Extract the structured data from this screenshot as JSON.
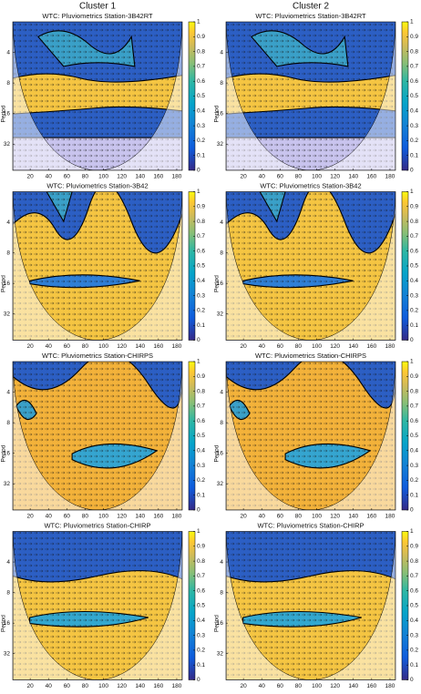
{
  "column_titles": [
    "Cluster 1",
    "Cluster 2"
  ],
  "chart_data": [
    {
      "type": "heatmap",
      "title": "WTC: Pluviometrics Station-3B42RT",
      "ylabel": "Period",
      "xlim": [
        1,
        186
      ],
      "xticks": [
        20,
        40,
        60,
        80,
        100,
        120,
        140,
        160,
        180
      ],
      "ylim": [
        2,
        58
      ],
      "yticks": [
        4,
        8,
        16,
        32
      ],
      "y_scale": "log2",
      "colorbar_lim": [
        0,
        1
      ],
      "colorbar_ticks": [
        0,
        0.1,
        0.2,
        0.3,
        0.4,
        0.5,
        0.6,
        0.7,
        0.8,
        0.9,
        1
      ]
    },
    {
      "type": "heatmap",
      "title": "WTC: Pluviometrics Station-3B42RT",
      "ylabel": "Period",
      "xlim": [
        1,
        186
      ],
      "xticks": [
        20,
        40,
        60,
        80,
        100,
        120,
        140,
        160,
        180
      ],
      "ylim": [
        2,
        58
      ],
      "yticks": [
        4,
        8,
        16,
        32
      ],
      "y_scale": "log2",
      "colorbar_lim": [
        0,
        1
      ],
      "colorbar_ticks": [
        0,
        0.1,
        0.2,
        0.3,
        0.4,
        0.5,
        0.6,
        0.7,
        0.8,
        0.9,
        1
      ]
    },
    {
      "type": "heatmap",
      "title": "WTC: Pluviometrics Station-3B42",
      "ylabel": "Period",
      "xlim": [
        1,
        186
      ],
      "xticks": [
        20,
        40,
        60,
        80,
        100,
        120,
        140,
        160,
        180
      ],
      "ylim": [
        2,
        58
      ],
      "yticks": [
        4,
        8,
        16,
        32
      ],
      "y_scale": "log2",
      "colorbar_lim": [
        0,
        1
      ],
      "colorbar_ticks": [
        0,
        0.1,
        0.2,
        0.3,
        0.4,
        0.5,
        0.6,
        0.7,
        0.8,
        0.9,
        1
      ]
    },
    {
      "type": "heatmap",
      "title": "WTC: Pluviometrics Station-3B42",
      "ylabel": "Period",
      "xlim": [
        1,
        186
      ],
      "xticks": [
        20,
        40,
        60,
        80,
        100,
        120,
        140,
        160,
        180
      ],
      "ylim": [
        2,
        58
      ],
      "yticks": [
        4,
        8,
        16,
        32
      ],
      "y_scale": "log2",
      "colorbar_lim": [
        0,
        1
      ],
      "colorbar_ticks": [
        0,
        0.1,
        0.2,
        0.3,
        0.4,
        0.5,
        0.6,
        0.7,
        0.8,
        0.9,
        1
      ]
    },
    {
      "type": "heatmap",
      "title": "WTC: Pluviometrics Station-CHIRPS",
      "ylabel": "Period",
      "xlim": [
        1,
        186
      ],
      "xticks": [
        20,
        40,
        60,
        80,
        100,
        120,
        140,
        160,
        180
      ],
      "ylim": [
        2,
        58
      ],
      "yticks": [
        4,
        8,
        16,
        32
      ],
      "y_scale": "log2",
      "colorbar_lim": [
        0,
        1
      ],
      "colorbar_ticks": [
        0,
        0.1,
        0.2,
        0.3,
        0.4,
        0.5,
        0.6,
        0.7,
        0.8,
        0.9,
        1
      ]
    },
    {
      "type": "heatmap",
      "title": "WTC: Pluviometrics Station-CHIRPS",
      "ylabel": "Period",
      "xlim": [
        1,
        186
      ],
      "xticks": [
        20,
        40,
        60,
        80,
        100,
        120,
        140,
        160,
        180
      ],
      "ylim": [
        2,
        58
      ],
      "yticks": [
        4,
        8,
        16,
        32
      ],
      "y_scale": "log2",
      "colorbar_lim": [
        0,
        1
      ],
      "colorbar_ticks": [
        0,
        0.1,
        0.2,
        0.3,
        0.4,
        0.5,
        0.6,
        0.7,
        0.8,
        0.9,
        1
      ]
    },
    {
      "type": "heatmap",
      "title": "WTC: Pluviometrics Station-CHIRP",
      "ylabel": "Period",
      "xlim": [
        1,
        186
      ],
      "xticks": [
        20,
        40,
        60,
        80,
        100,
        120,
        140,
        160,
        180
      ],
      "ylim": [
        2,
        58
      ],
      "yticks": [
        4,
        8,
        16,
        32
      ],
      "y_scale": "log2",
      "colorbar_lim": [
        0,
        1
      ],
      "colorbar_ticks": [
        0,
        0.1,
        0.2,
        0.3,
        0.4,
        0.5,
        0.6,
        0.7,
        0.8,
        0.9,
        1
      ]
    },
    {
      "type": "heatmap",
      "title": "WTC: Pluviometrics Station-CHIRP",
      "ylabel": "Period",
      "xlim": [
        1,
        186
      ],
      "xticks": [
        20,
        40,
        60,
        80,
        100,
        120,
        140,
        160,
        180
      ],
      "ylim": [
        2,
        58
      ],
      "yticks": [
        4,
        8,
        16,
        32
      ],
      "y_scale": "log2",
      "colorbar_lim": [
        0,
        1
      ],
      "colorbar_ticks": [
        0,
        0.1,
        0.2,
        0.3,
        0.4,
        0.5,
        0.6,
        0.7,
        0.8,
        0.9,
        1
      ]
    }
  ]
}
